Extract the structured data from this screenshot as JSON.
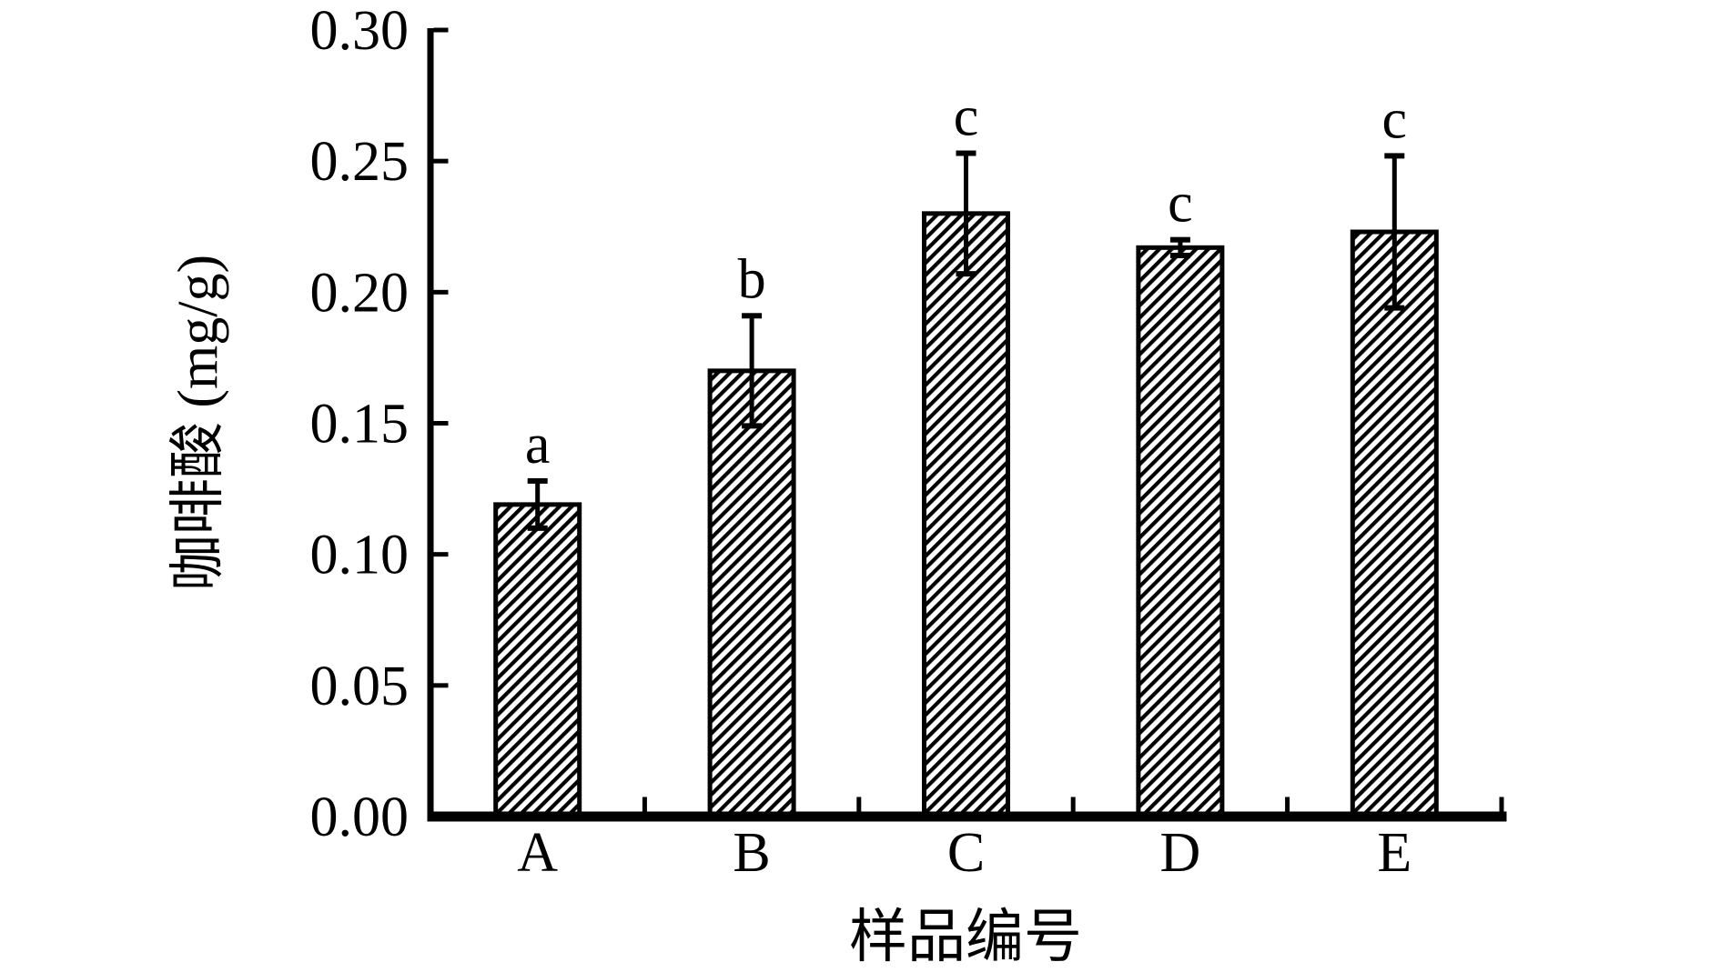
{
  "figure": {
    "background": "#ffffff",
    "foreground": "#000000"
  },
  "chart_data": {
    "type": "bar",
    "title": "",
    "xlabel": "样品编号",
    "ylabel": "咖啡酸 (mg/g)",
    "categories": [
      "A",
      "B",
      "C",
      "D",
      "E"
    ],
    "values": [
      0.119,
      0.17,
      0.23,
      0.217,
      0.223
    ],
    "errors": [
      0.009,
      0.021,
      0.023,
      0.003,
      0.029
    ],
    "sig_letters": [
      "a",
      "b",
      "c",
      "c",
      "c"
    ],
    "ylim": [
      0.0,
      0.3
    ],
    "yticks": [
      0.0,
      0.05,
      0.1,
      0.15,
      0.2,
      0.25,
      0.3
    ],
    "ytick_labels": [
      "0.00",
      "0.05",
      "0.10",
      "0.15",
      "0.20",
      "0.25",
      "0.30"
    ],
    "grid": false,
    "legend": null,
    "bar_style": "diagonal-hatch",
    "colors": {
      "bar_line": "#000000",
      "bar_fill": "#ffffff",
      "background": "#ffffff"
    }
  }
}
